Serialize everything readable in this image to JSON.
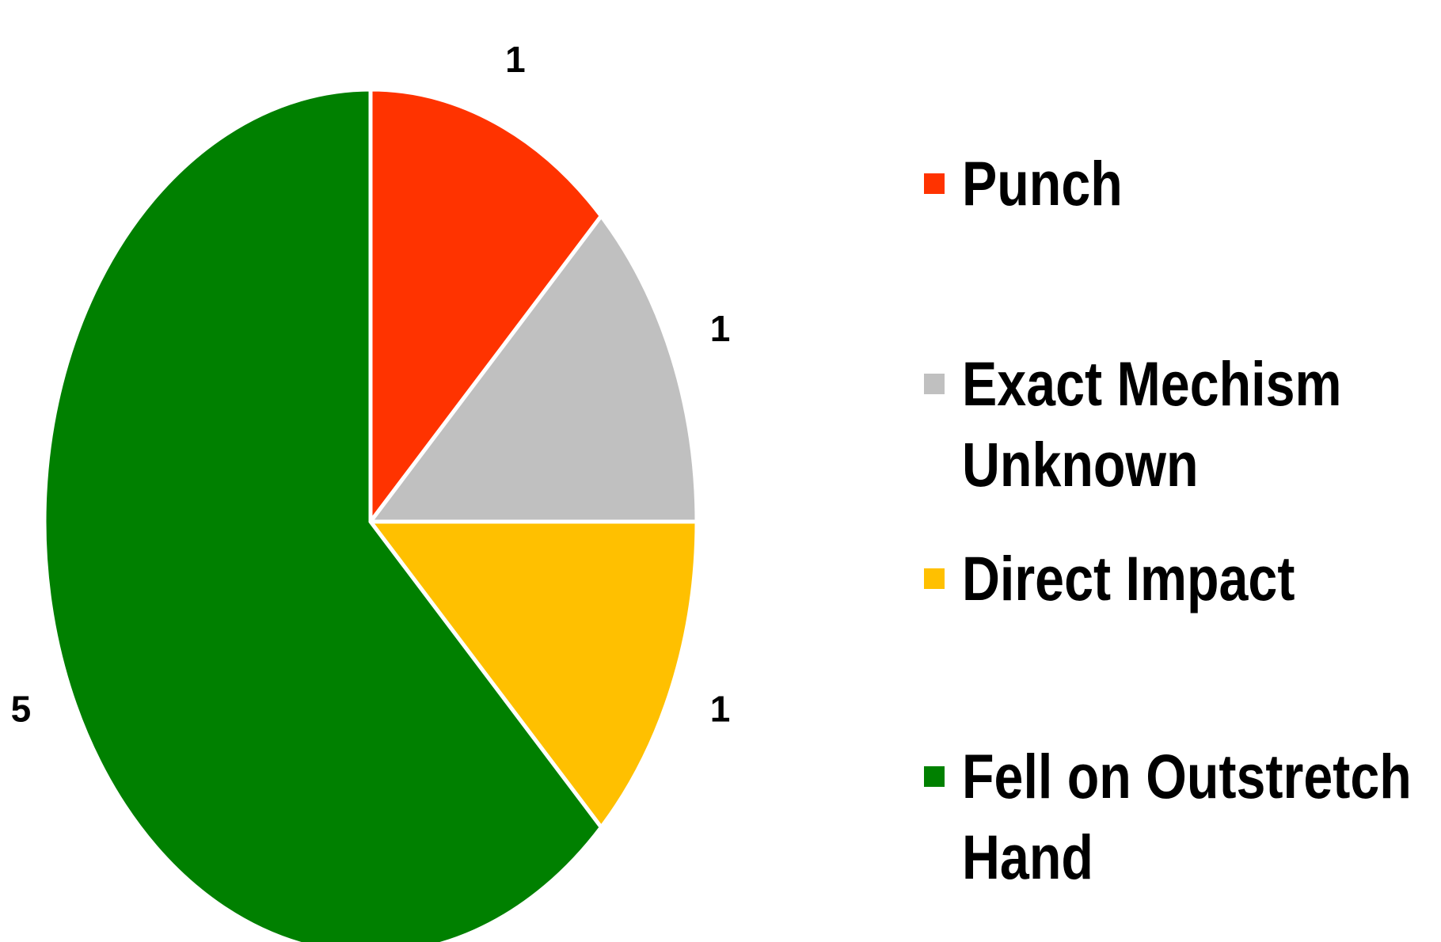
{
  "chart_data": {
    "type": "pie",
    "categories": [
      "Punch",
      "Exact Mechism Unknown",
      "Direct Impact",
      "Fell on Outstretch Hand"
    ],
    "values": [
      1,
      1,
      1,
      5
    ],
    "colors": [
      "#ff3300",
      "#c0c0c0",
      "#ffc000",
      "#008000"
    ],
    "legend": "right"
  }
}
